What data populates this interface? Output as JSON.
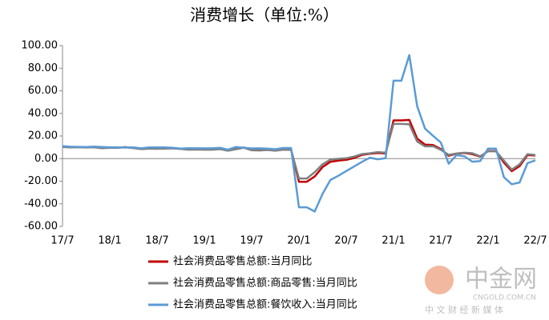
{
  "chart_data": {
    "type": "line",
    "title": "消费增长（单位:%）",
    "categories": [
      "17/7",
      null,
      null,
      null,
      null,
      null,
      "18/1",
      null,
      null,
      null,
      null,
      null,
      "18/7",
      null,
      null,
      null,
      null,
      null,
      "19/1",
      null,
      null,
      null,
      null,
      null,
      "19/7",
      null,
      null,
      null,
      null,
      null,
      "20/1",
      null,
      null,
      null,
      null,
      null,
      "20/7",
      null,
      null,
      null,
      null,
      null,
      "21/1",
      null,
      null,
      null,
      null,
      null,
      "21/7",
      null,
      null,
      null,
      null,
      null,
      "22/1",
      null,
      null,
      null,
      null,
      null,
      "22/7"
    ],
    "series": [
      {
        "name": "社会消费品零售总额:当月同比",
        "color": "#c00000",
        "values": [
          10.4,
          10.1,
          10.3,
          10.0,
          10.2,
          9.4,
          9.7,
          9.7,
          10.1,
          9.4,
          8.5,
          9.0,
          8.8,
          9.0,
          9.2,
          8.6,
          8.1,
          8.2,
          8.2,
          8.2,
          8.7,
          7.2,
          8.6,
          9.8,
          7.6,
          7.5,
          7.8,
          7.2,
          8.0,
          8.0,
          -20.5,
          -20.5,
          -15.8,
          -7.5,
          -2.8,
          -1.8,
          -1.1,
          0.5,
          3.3,
          4.3,
          5.0,
          4.6,
          33.8,
          33.8,
          34.2,
          17.7,
          12.4,
          12.1,
          8.5,
          2.5,
          4.4,
          4.9,
          3.9,
          1.7,
          6.7,
          6.7,
          -3.5,
          -11.1,
          -6.7,
          3.1,
          2.7
        ]
      },
      {
        "name": "社会消费品零售总额:商品零售:当月同比",
        "color": "#7f7f7f",
        "values": [
          10.2,
          9.9,
          10.1,
          9.8,
          10.0,
          9.2,
          9.6,
          9.6,
          10.1,
          9.4,
          8.4,
          8.8,
          8.7,
          8.8,
          9.1,
          8.6,
          7.9,
          8.0,
          7.9,
          7.9,
          8.4,
          7.0,
          8.3,
          9.6,
          7.4,
          7.2,
          7.7,
          7.0,
          7.9,
          7.7,
          -17.6,
          -17.6,
          -12.0,
          -5.0,
          -0.8,
          -0.2,
          0.3,
          1.8,
          4.0,
          4.7,
          5.8,
          5.2,
          30.7,
          30.7,
          30.4,
          15.1,
          10.9,
          11.0,
          7.8,
          3.3,
          4.5,
          5.2,
          4.8,
          2.0,
          6.5,
          6.5,
          -1.7,
          -9.7,
          -5.0,
          3.9,
          3.2
        ]
      },
      {
        "name": "社会消费品零售总额:餐饮收入:当月同比",
        "color": "#5b9bd5",
        "values": [
          11.1,
          10.5,
          10.4,
          10.3,
          10.6,
          10.2,
          10.0,
          10.0,
          9.7,
          9.9,
          9.1,
          9.9,
          9.9,
          9.9,
          9.6,
          8.9,
          9.2,
          9.1,
          9.1,
          9.1,
          9.6,
          7.9,
          10.3,
          9.6,
          9.0,
          9.1,
          8.8,
          8.3,
          9.4,
          9.4,
          -43.1,
          -43.1,
          -46.8,
          -31.1,
          -18.9,
          -15.2,
          -11.0,
          -7.0,
          -2.9,
          0.8,
          -0.6,
          0.4,
          68.9,
          68.9,
          91.6,
          46.4,
          26.6,
          20.2,
          14.3,
          -4.5,
          3.1,
          2.0,
          -2.7,
          -2.2,
          8.9,
          8.9,
          -16.4,
          -22.7,
          -21.1,
          -4.0,
          -1.5
        ]
      }
    ],
    "ylim": [
      -60,
      100
    ],
    "yticks": [
      {
        "value": -60,
        "label": "-60.00"
      },
      {
        "value": -40,
        "label": "-40.00"
      },
      {
        "value": -20,
        "label": "-20.00"
      },
      {
        "value": 0,
        "label": "0.00"
      },
      {
        "value": 20,
        "label": "20.00"
      },
      {
        "value": 40,
        "label": "40.00"
      },
      {
        "value": 60,
        "label": "60.00"
      },
      {
        "value": 80,
        "label": "80.00"
      },
      {
        "value": 100,
        "label": "100.00"
      }
    ],
    "grid": false
  },
  "watermark": {
    "brand": "中金网",
    "domain": "CNGOLD.COM.CN",
    "slogan": "中 文 财 经 新 媒 体"
  }
}
